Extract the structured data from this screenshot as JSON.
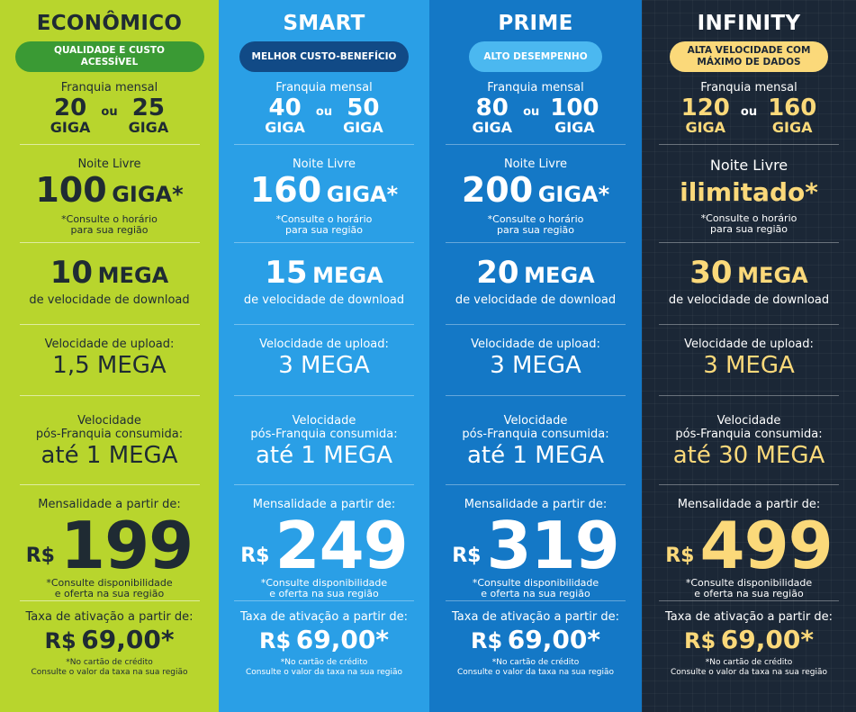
{
  "labels": {
    "franquia": "Franquia mensal",
    "ou": "ou",
    "noite": "Noite Livre",
    "noite_note_1": "*Consulte o horário",
    "noite_note_2": "para sua região",
    "download": "de velocidade de download",
    "upload": "Velocidade de upload:",
    "pos_1": "Velocidade",
    "pos_2": "pós-Franquia consumida:",
    "mensal": "Mensalidade a partir de:",
    "currency": "R$",
    "disp_1": "*Consulte disponibilidade",
    "disp_2": "e oferta na sua região",
    "taxa": "Taxa de ativação a partir de:",
    "taxa_note_1": "*No cartão de crédito",
    "taxa_note_2": "Consulte o valor da taxa na sua região"
  },
  "plans": [
    {
      "name": "ECONÔMICO",
      "badge": "QUALIDADE E CUSTO ACESSÍVEL",
      "franquia_a": "20",
      "franquia_b": "25",
      "unit": "GIGA",
      "noite_num": "100",
      "noite_unit": "GIGA*",
      "download_num": "10",
      "download_unit": "MEGA",
      "upload": "1,5 MEGA",
      "pos": "até 1 MEGA",
      "price": "199",
      "taxa": "69,00*"
    },
    {
      "name": "SMART",
      "badge": "MELHOR CUSTO-BENEFÍCIO",
      "franquia_a": "40",
      "franquia_b": "50",
      "unit": "GIGA",
      "noite_num": "160",
      "noite_unit": "GIGA*",
      "download_num": "15",
      "download_unit": "MEGA",
      "upload": "3 MEGA",
      "pos": "até 1 MEGA",
      "price": "249",
      "taxa": "69,00*"
    },
    {
      "name": "PRIME",
      "badge": "ALTO DESEMPENHO",
      "franquia_a": "80",
      "franquia_b": "100",
      "unit": "GIGA",
      "noite_num": "200",
      "noite_unit": "GIGA*",
      "download_num": "20",
      "download_unit": "MEGA",
      "upload": "3 MEGA",
      "pos": "até 1 MEGA",
      "price": "319",
      "taxa": "69,00*"
    },
    {
      "name": "INFINITY",
      "badge": "ALTA VELOCIDADE COM MÁXIMO DE DADOS",
      "franquia_a": "120",
      "franquia_b": "160",
      "unit": "GIGA",
      "noite_text": "ilimitado*",
      "download_num": "30",
      "download_unit": "MEGA",
      "upload": "3 MEGA",
      "pos": "até 30 MEGA",
      "price": "499",
      "taxa": "69,00*"
    }
  ],
  "colors": {
    "economico_bg": "#b8d52d",
    "smart_bg": "#2a9fe6",
    "prime_bg": "#1478c6",
    "infinity_bg": "#1b2736",
    "infinity_accent": "#fbd97a"
  }
}
